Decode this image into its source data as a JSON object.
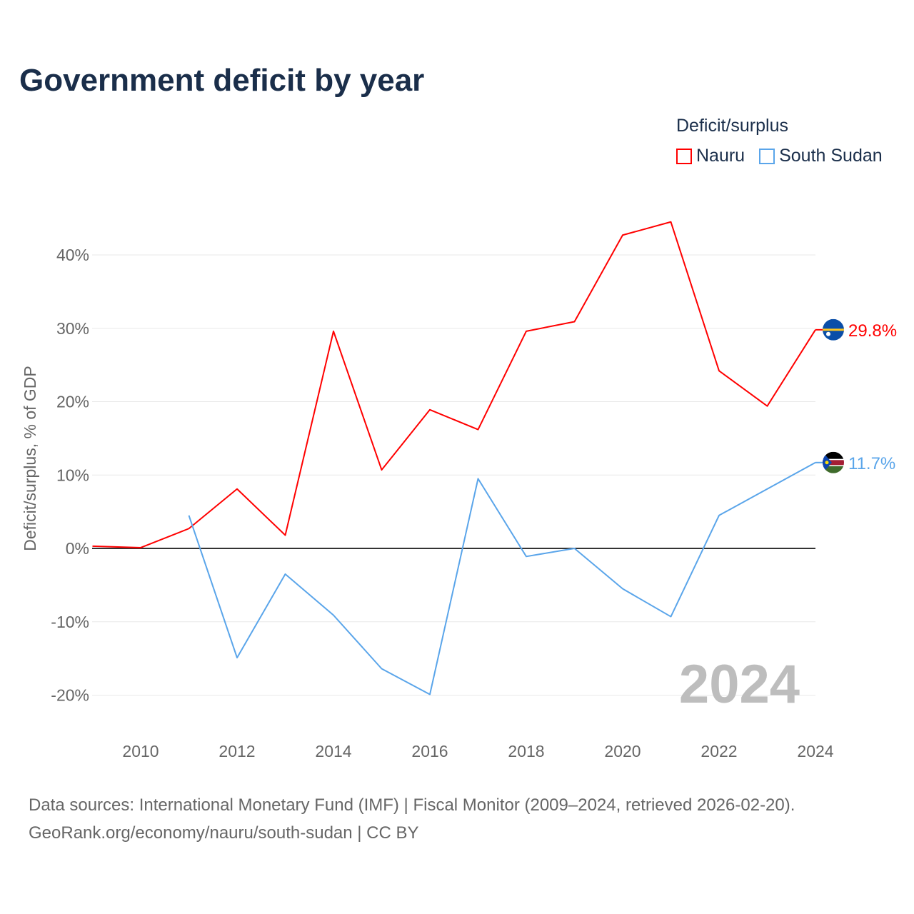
{
  "chart_data": {
    "type": "line",
    "title": "Government deficit by year",
    "ylabel": "Deficit/surplus, % of GDP",
    "xlabel": "",
    "legend_title": "Deficit/surplus",
    "legend_position": "top-right",
    "x": [
      2009,
      2010,
      2011,
      2012,
      2013,
      2014,
      2015,
      2016,
      2017,
      2018,
      2019,
      2020,
      2021,
      2022,
      2023,
      2024
    ],
    "xlim": [
      2009,
      2024
    ],
    "ylim": [
      -25,
      50
    ],
    "x_ticks": [
      2010,
      2012,
      2014,
      2016,
      2018,
      2020,
      2022,
      2024
    ],
    "x_tick_labels": [
      "2010",
      "2012",
      "2014",
      "2016",
      "2018",
      "2020",
      "2022",
      "2024"
    ],
    "y_ticks": [
      -20,
      -10,
      0,
      10,
      20,
      30,
      40
    ],
    "y_tick_labels": [
      "-20%",
      "-10%",
      "0%",
      "10%",
      "20%",
      "30%",
      "40%"
    ],
    "grid": true,
    "series": [
      {
        "name": "Nauru",
        "color": "#ff0000",
        "end_label": "29.8%",
        "flag": "nauru-flag",
        "values": [
          0.3,
          0.1,
          2.7,
          8.1,
          1.8,
          29.6,
          10.7,
          18.9,
          16.2,
          29.6,
          30.9,
          42.7,
          44.5,
          24.2,
          19.4,
          29.8
        ]
      },
      {
        "name": "South Sudan",
        "color": "#5aa5ea",
        "end_label": "11.7%",
        "flag": "south-sudan-flag",
        "values": [
          null,
          null,
          4.5,
          -14.9,
          -3.5,
          -9.1,
          -16.4,
          -19.9,
          9.5,
          -1.1,
          0.0,
          -5.5,
          -9.3,
          4.5,
          8.1,
          11.7
        ]
      }
    ],
    "annotation": "2024"
  },
  "footer": {
    "line1": "Data sources: International Monetary Fund (IMF) | Fiscal Monitor (2009–2024, retrieved 2026-02-20).",
    "line2": "GeoRank.org/economy/nauru/south-sudan | CC BY"
  }
}
